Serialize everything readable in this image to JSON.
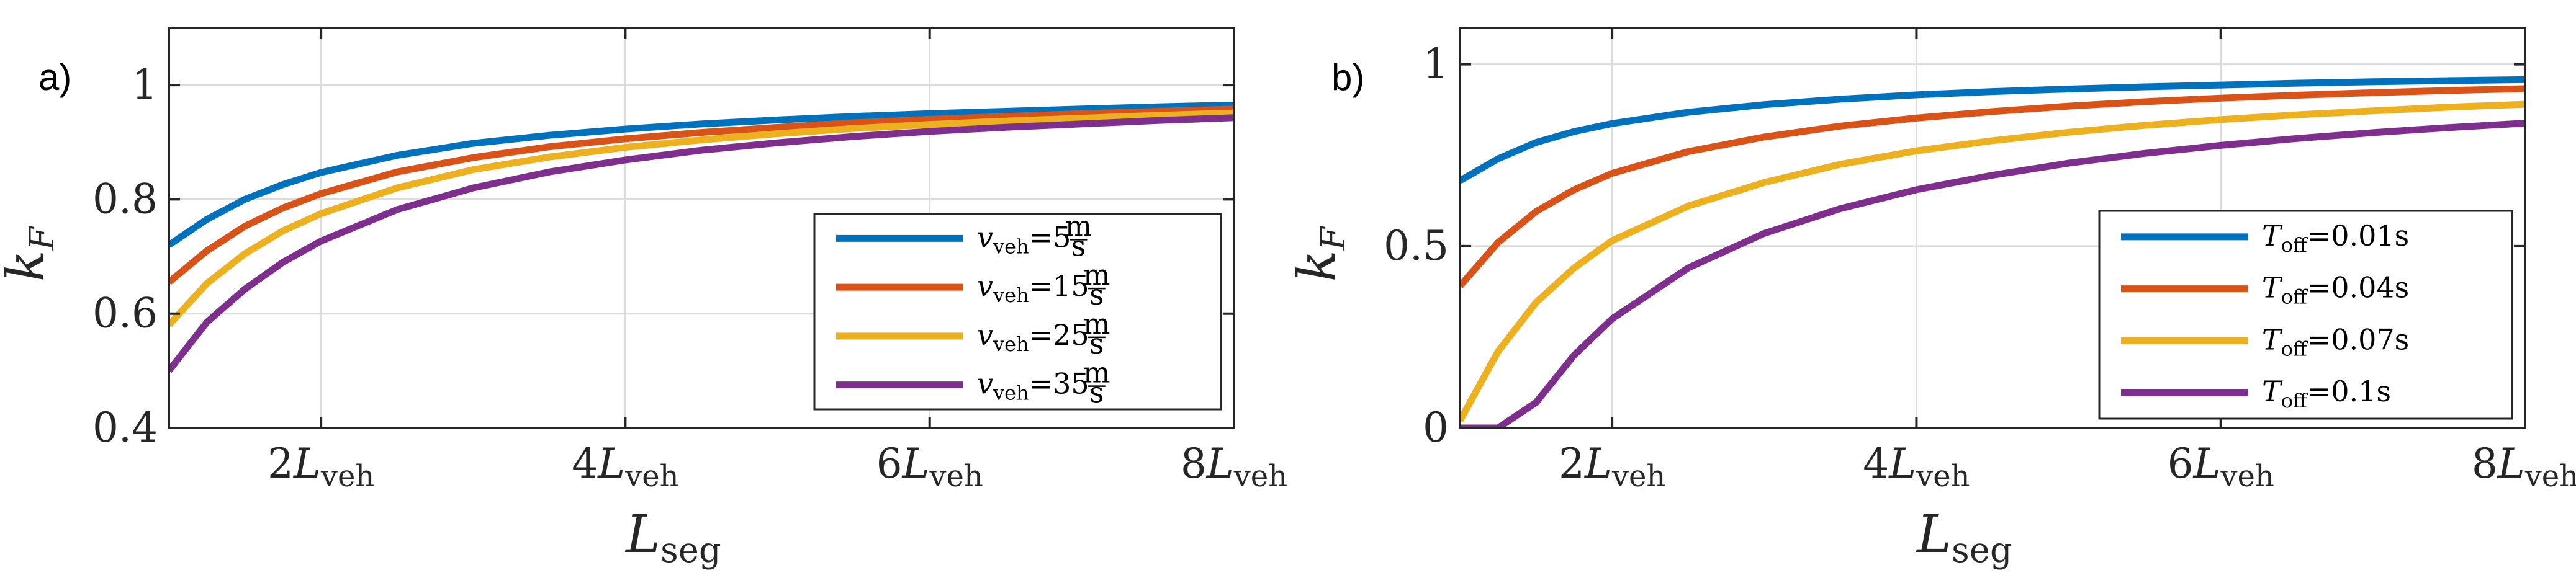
{
  "chart_data": [
    {
      "type": "line",
      "panel_tag": "a)",
      "xlabel": {
        "main": "L",
        "sub": "seg"
      },
      "ylabel": {
        "main": "k",
        "sub": "F"
      },
      "xlim": [
        1,
        8
      ],
      "ylim": [
        0.4,
        1.1
      ],
      "grid": true,
      "legend_position": "bottom-right",
      "x_ticks": [
        {
          "value": 2,
          "coef": "2",
          "main": "L",
          "sub": "veh"
        },
        {
          "value": 4,
          "coef": "4",
          "main": "L",
          "sub": "veh"
        },
        {
          "value": 6,
          "coef": "6",
          "main": "L",
          "sub": "veh"
        },
        {
          "value": 8,
          "coef": "8",
          "main": "L",
          "sub": "veh"
        }
      ],
      "y_ticks": [
        {
          "value": 0.4,
          "label": "0.4"
        },
        {
          "value": 0.6,
          "label": "0.6"
        },
        {
          "value": 0.8,
          "label": "0.8"
        },
        {
          "value": 1.0,
          "label": "1"
        }
      ],
      "x": [
        1,
        1.25,
        1.5,
        1.75,
        2,
        2.5,
        3,
        3.5,
        4,
        4.5,
        5,
        5.5,
        6,
        6.5,
        7,
        7.5,
        8
      ],
      "series": [
        {
          "name": {
            "main": "v",
            "sub": "veh",
            "eq": "=5",
            "num": "m",
            "den": "s"
          },
          "color": "#0072BD",
          "values": [
            0.72,
            0.765,
            0.8,
            0.826,
            0.847,
            0.877,
            0.898,
            0.912,
            0.923,
            0.932,
            0.939,
            0.945,
            0.95,
            0.954,
            0.958,
            0.962,
            0.965
          ]
        },
        {
          "name": {
            "main": "v",
            "sub": "veh",
            "eq": "=15",
            "num": "m",
            "den": "s"
          },
          "color": "#D95319",
          "values": [
            0.655,
            0.71,
            0.753,
            0.785,
            0.81,
            0.848,
            0.873,
            0.892,
            0.906,
            0.917,
            0.926,
            0.934,
            0.94,
            0.945,
            0.95,
            0.954,
            0.958
          ]
        },
        {
          "name": {
            "main": "v",
            "sub": "veh",
            "eq": "=25",
            "num": "m",
            "den": "s"
          },
          "color": "#EDB120",
          "values": [
            0.58,
            0.653,
            0.705,
            0.745,
            0.775,
            0.82,
            0.852,
            0.874,
            0.891,
            0.904,
            0.915,
            0.924,
            0.931,
            0.937,
            0.942,
            0.947,
            0.951
          ]
        },
        {
          "name": {
            "main": "v",
            "sub": "veh",
            "eq": "=35",
            "num": "m",
            "den": "s"
          },
          "color": "#7E2F8E",
          "values": [
            0.5,
            0.585,
            0.643,
            0.69,
            0.727,
            0.782,
            0.82,
            0.848,
            0.869,
            0.886,
            0.899,
            0.91,
            0.919,
            0.926,
            0.932,
            0.938,
            0.943
          ]
        }
      ]
    },
    {
      "type": "line",
      "panel_tag": "b)",
      "xlabel": {
        "main": "L",
        "sub": "seg"
      },
      "ylabel": {
        "main": "k",
        "sub": "F"
      },
      "xlim": [
        1,
        8
      ],
      "ylim": [
        0,
        1.1
      ],
      "grid": true,
      "legend_position": "bottom-right",
      "x_ticks": [
        {
          "value": 2,
          "coef": "2",
          "main": "L",
          "sub": "veh"
        },
        {
          "value": 4,
          "coef": "4",
          "main": "L",
          "sub": "veh"
        },
        {
          "value": 6,
          "coef": "6",
          "main": "L",
          "sub": "veh"
        },
        {
          "value": 8,
          "coef": "8",
          "main": "L",
          "sub": "veh"
        }
      ],
      "y_ticks": [
        {
          "value": 0,
          "label": "0"
        },
        {
          "value": 0.5,
          "label": "0.5"
        },
        {
          "value": 1.0,
          "label": "1"
        }
      ],
      "x": [
        1,
        1.25,
        1.5,
        1.75,
        2,
        2.5,
        3,
        3.5,
        4,
        4.5,
        5,
        5.5,
        6,
        6.5,
        7,
        7.5,
        8
      ],
      "series": [
        {
          "name": {
            "main": "T",
            "sub": "off",
            "eq": "=0.01s"
          },
          "color": "#0072BD",
          "values": [
            0.68,
            0.74,
            0.785,
            0.815,
            0.837,
            0.868,
            0.889,
            0.904,
            0.916,
            0.925,
            0.932,
            0.938,
            0.943,
            0.948,
            0.952,
            0.955,
            0.958
          ]
        },
        {
          "name": {
            "main": "T",
            "sub": "off",
            "eq": "=0.04s"
          },
          "color": "#D95319",
          "values": [
            0.39,
            0.51,
            0.595,
            0.655,
            0.7,
            0.76,
            0.8,
            0.83,
            0.852,
            0.87,
            0.885,
            0.897,
            0.907,
            0.915,
            0.922,
            0.928,
            0.933
          ]
        },
        {
          "name": {
            "main": "T",
            "sub": "off",
            "eq": "=0.07s"
          },
          "color": "#EDB120",
          "values": [
            0.02,
            0.21,
            0.345,
            0.44,
            0.515,
            0.61,
            0.675,
            0.725,
            0.762,
            0.79,
            0.813,
            0.832,
            0.848,
            0.861,
            0.872,
            0.882,
            0.89
          ]
        },
        {
          "name": {
            "main": "T",
            "sub": "off",
            "eq": "=0.1s"
          },
          "color": "#7E2F8E",
          "values": [
            0.0,
            0.0,
            0.07,
            0.2,
            0.3,
            0.44,
            0.535,
            0.603,
            0.655,
            0.695,
            0.728,
            0.755,
            0.777,
            0.796,
            0.812,
            0.826,
            0.838
          ]
        }
      ]
    }
  ]
}
